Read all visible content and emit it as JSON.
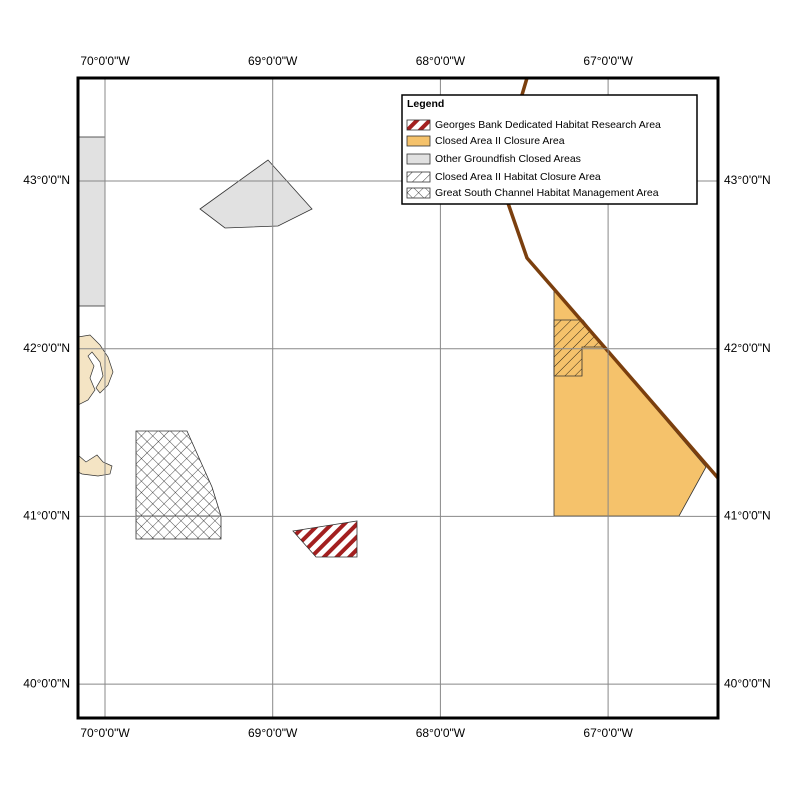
{
  "map": {
    "lon_ticks": [
      {
        "value": -70,
        "label": "70°0'0\"W"
      },
      {
        "value": -69,
        "label": "69°0'0\"W"
      },
      {
        "value": -68,
        "label": "68°0'0\"W"
      },
      {
        "value": -67,
        "label": "67°0'0\"W"
      }
    ],
    "lat_ticks": [
      {
        "value": 43,
        "label": "43°0'0\"N"
      },
      {
        "value": 42,
        "label": "42°0'0\"N"
      },
      {
        "value": 41,
        "label": "41°0'0\"N"
      },
      {
        "value": 40,
        "label": "40°0'0\"N"
      }
    ],
    "legend": {
      "title": "Legend",
      "items": [
        "Georges Bank Dedicated Habitat Research Area",
        "Closed Area II Closure Area",
        "Other Groundfish Closed Areas",
        "Closed Area II Habitat Closure Area",
        "Great South Channel Habitat Management Area"
      ]
    }
  }
}
